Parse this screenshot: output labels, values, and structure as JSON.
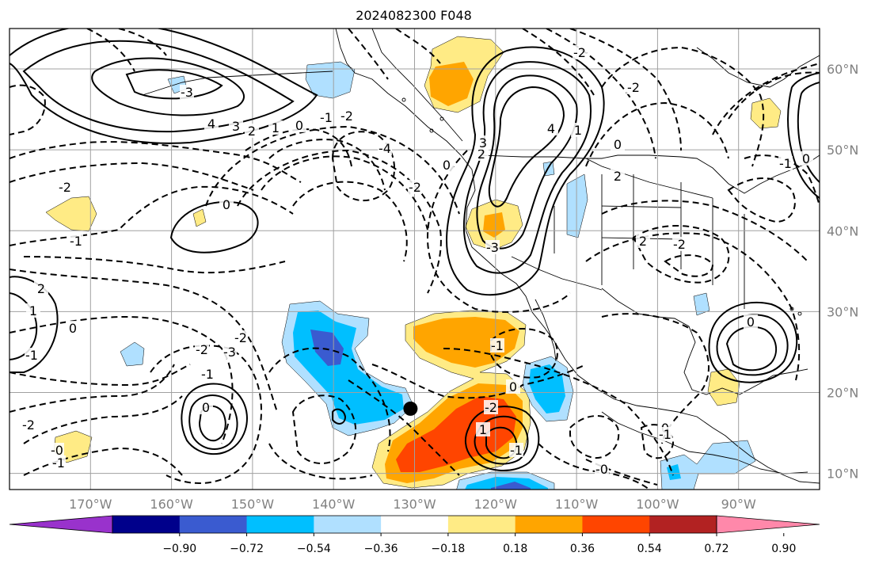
{
  "title": "2024082300 F048",
  "map": {
    "lon_range": [
      -180,
      -80
    ],
    "lat_range": [
      8,
      65
    ],
    "lon_ticks": [
      -170,
      -160,
      -150,
      -140,
      -130,
      -120,
      -110,
      -100,
      -90
    ],
    "lon_tick_labels": [
      "170°W",
      "160°W",
      "150°W",
      "140°W",
      "130°W",
      "120°W",
      "110°W",
      "100°W",
      "90°W"
    ],
    "lat_ticks": [
      10,
      20,
      30,
      40,
      50,
      60
    ],
    "lat_tick_labels": [
      "10°N",
      "20°N",
      "30°N",
      "40°N",
      "50°N",
      "60°N"
    ],
    "grid": true,
    "marker": {
      "lon": -130.5,
      "lat": 18.0
    },
    "contour_labels": [
      "4",
      "3",
      "2",
      "1",
      "0",
      "-1",
      "-2",
      "-3",
      "-4",
      "0",
      "-1",
      "-2",
      "2",
      "1",
      "0",
      "-1",
      "-2",
      "-3",
      "-2",
      "-1",
      "0",
      "-2",
      "-1",
      "-0",
      "2",
      "3",
      "4",
      "1",
      "0",
      "-2",
      "-3",
      "-1",
      "0",
      "-2",
      "-1",
      "1",
      "2",
      "-2",
      "0",
      "-1",
      "-0",
      "2",
      "0",
      "-2",
      "-2",
      "0",
      "-1",
      "0"
    ]
  },
  "colorbar": {
    "ticks": [
      "−0.90",
      "−0.72",
      "−0.54",
      "−0.36",
      "−0.18",
      "0.18",
      "0.36",
      "0.54",
      "0.72",
      "0.90"
    ],
    "colors": [
      "#9932cc",
      "#00008b",
      "#3a5bd0",
      "#00bfff",
      "#b0e0ff",
      "#ffffff",
      "#ffeb85",
      "#ffa500",
      "#ff4500",
      "#b22222",
      "#ff88aa"
    ],
    "extend": "both"
  },
  "colors": {
    "neg_strong": "#3a5bd0",
    "neg_mid": "#00bfff",
    "neg_weak": "#b0e0ff",
    "pos_weak": "#ffeb85",
    "pos_mid": "#ffa500",
    "pos_strong": "#ff4500",
    "grid": "#a0a0a0"
  }
}
